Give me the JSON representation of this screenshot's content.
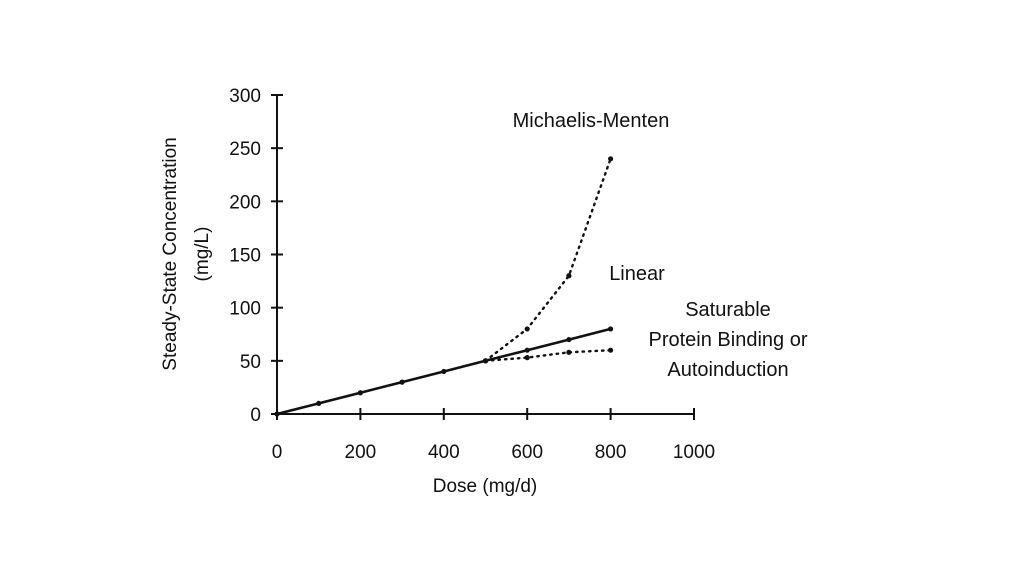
{
  "chart_data": {
    "type": "line",
    "title": "",
    "xlabel": "Dose (mg/d)",
    "ylabel_line1": "Steady-State Concentration",
    "ylabel_line2": "(mg/L)",
    "xlim": [
      0,
      1000
    ],
    "ylim": [
      0,
      300
    ],
    "xticks": [
      0,
      200,
      400,
      600,
      800,
      1000
    ],
    "yticks": [
      0,
      50,
      100,
      150,
      200,
      250,
      300
    ],
    "grid": false,
    "series": [
      {
        "name": "Linear",
        "style": "solid",
        "x": [
          0,
          100,
          200,
          300,
          400,
          500,
          600,
          700,
          800
        ],
        "y": [
          0,
          10,
          20,
          30,
          40,
          50,
          60,
          70,
          80
        ]
      },
      {
        "name": "Michaelis-Menten",
        "style": "dotted",
        "x": [
          500,
          600,
          700,
          800
        ],
        "y": [
          50,
          80,
          130,
          240
        ]
      },
      {
        "name": "Saturable Protein Binding or Autoinduction",
        "style": "dotted",
        "x": [
          500,
          600,
          700,
          800
        ],
        "y": [
          50,
          53,
          58,
          60
        ]
      }
    ],
    "annotations": {
      "michaelis": "Michaelis-Menten",
      "linear": "Linear",
      "saturable_1": "Saturable",
      "saturable_2": "Protein Binding or",
      "saturable_3": "Autoinduction"
    },
    "colors": {
      "ink": "#111111",
      "background": "#ffffff"
    }
  }
}
